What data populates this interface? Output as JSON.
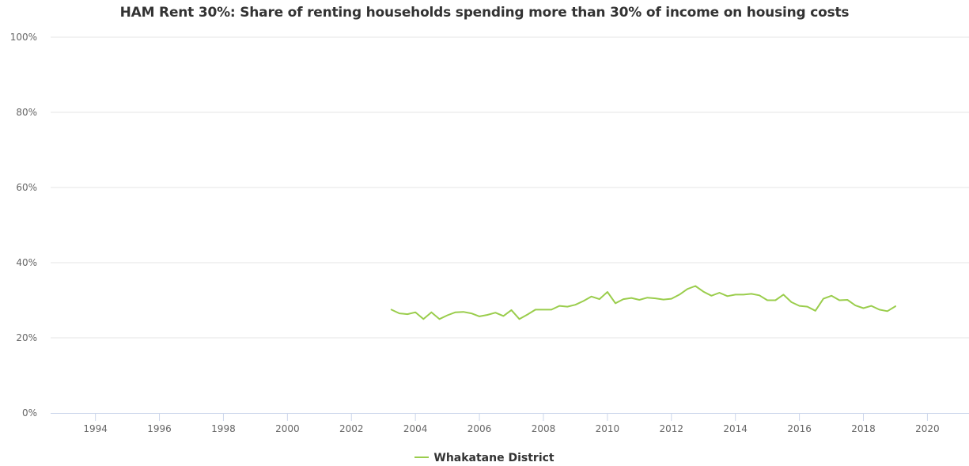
{
  "chart_data": {
    "type": "line",
    "title": "HAM Rent 30%: Share of renting households spending more than 30% of income on housing costs",
    "xlabel": "",
    "ylabel": "",
    "xlim": [
      1992.6,
      2021.3
    ],
    "ylim": [
      0,
      100
    ],
    "x_ticks": [
      "1994",
      "1996",
      "1998",
      "2000",
      "2002",
      "2004",
      "2006",
      "2008",
      "2010",
      "2012",
      "2014",
      "2016",
      "2018",
      "2020"
    ],
    "y_ticks": [
      "0%",
      "20%",
      "40%",
      "60%",
      "80%",
      "100%"
    ],
    "grid": "horizontal",
    "legend_position": "bottom-center",
    "series": [
      {
        "name": "Whakatane District",
        "color": "#9acd4c",
        "x": [
          2003.25,
          2003.5,
          2003.75,
          2004.0,
          2004.25,
          2004.5,
          2004.75,
          2005.0,
          2005.25,
          2005.5,
          2005.75,
          2006.0,
          2006.25,
          2006.5,
          2006.75,
          2007.0,
          2007.25,
          2007.5,
          2007.75,
          2008.0,
          2008.25,
          2008.5,
          2008.75,
          2009.0,
          2009.25,
          2009.5,
          2009.75,
          2010.0,
          2010.25,
          2010.5,
          2010.75,
          2011.0,
          2011.25,
          2011.5,
          2011.75,
          2012.0,
          2012.25,
          2012.5,
          2012.75,
          2013.0,
          2013.25,
          2013.5,
          2013.75,
          2014.0,
          2014.25,
          2014.5,
          2014.75,
          2015.0,
          2015.25,
          2015.5,
          2015.75,
          2016.0,
          2016.25,
          2016.5,
          2016.75,
          2017.0,
          2017.25,
          2017.5,
          2017.75,
          2018.0,
          2018.25,
          2018.5,
          2018.75,
          2019.0
        ],
        "values": [
          27.5,
          26.5,
          26.3,
          26.8,
          25.0,
          26.8,
          25.0,
          26.0,
          26.8,
          26.9,
          26.5,
          25.7,
          26.1,
          26.7,
          25.8,
          27.4,
          25.0,
          26.2,
          27.5,
          27.5,
          27.5,
          28.5,
          28.3,
          28.8,
          29.8,
          31.0,
          30.3,
          32.2,
          29.2,
          30.3,
          30.6,
          30.1,
          30.7,
          30.5,
          30.2,
          30.4,
          31.5,
          33.0,
          33.8,
          32.3,
          31.2,
          32.0,
          31.1,
          31.5,
          31.5,
          31.7,
          31.3,
          30.0,
          30.0,
          31.5,
          29.5,
          28.5,
          28.3,
          27.2,
          30.4,
          31.2,
          30.0,
          30.1,
          28.6,
          27.9,
          28.5,
          27.5,
          27.1,
          28.4
        ]
      }
    ]
  }
}
